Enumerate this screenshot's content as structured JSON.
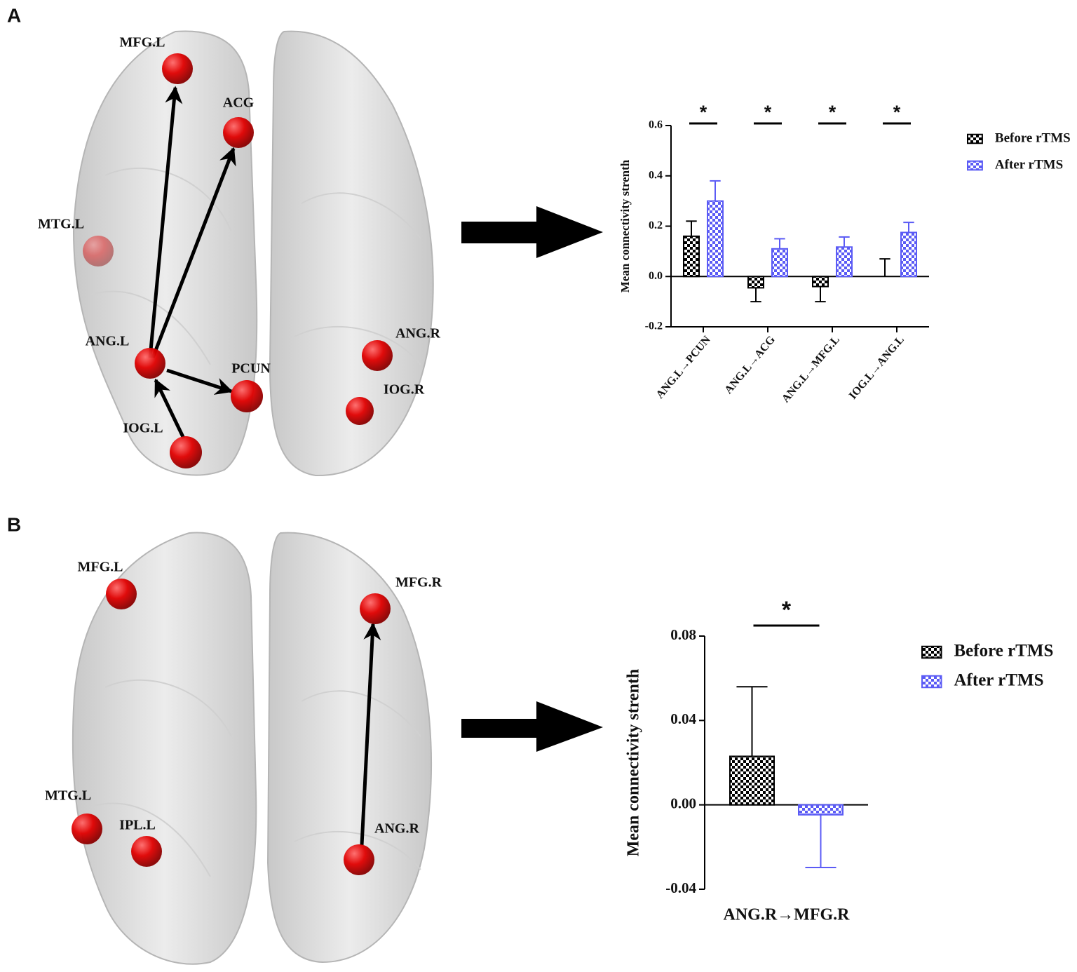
{
  "panels": [
    {
      "label": "A",
      "nodes": [
        "MFG.L",
        "ACG",
        "MTG.L",
        "ANG.L",
        "PCUN",
        "ANG.R",
        "IOG.R",
        "IOG.L"
      ]
    },
    {
      "label": "B",
      "nodes": [
        "MFG.L",
        "MFG.R",
        "MTG.L",
        "IPL.L",
        "ANG.R"
      ]
    }
  ],
  "chart_data": [
    {
      "type": "bar",
      "ylabel": "Mean connectivity strenth",
      "categories": [
        "ANG.L→PCUN",
        "ANG.L→ACG",
        "ANG.L→MFG.L",
        "IOG.L→ANG.L"
      ],
      "series": [
        {
          "name": "Before rTMS",
          "color": "#000000",
          "values": [
            0.16,
            -0.045,
            -0.04,
            0
          ],
          "errors": [
            0.06,
            0.055,
            0.06,
            0.07
          ]
        },
        {
          "name": "After rTMS",
          "color": "#5b5bf5",
          "values": [
            0.3,
            0.11,
            0.117,
            0.175
          ],
          "errors": [
            0.08,
            0.04,
            0.04,
            0.04
          ]
        }
      ],
      "ylim": [
        -0.2,
        0.6
      ],
      "yticks": [
        -0.2,
        {
          "value": 0,
          "label": "0.0"
        },
        0.2,
        0.4,
        0.6
      ],
      "annotations": [
        "*",
        "*",
        "*",
        "*"
      ]
    },
    {
      "type": "bar",
      "ylabel": "Mean connectivity strenth",
      "categories": [
        "ANG.R→MFG.R"
      ],
      "series": [
        {
          "name": "Before rTMS",
          "color": "#000000",
          "values": [
            0.023
          ],
          "errors": [
            0.033
          ]
        },
        {
          "name": "After rTMS",
          "color": "#5b5bf5",
          "values": [
            -0.0047
          ],
          "errors": [
            0.025
          ]
        }
      ],
      "ylim": [
        -0.04,
        0.08
      ],
      "yticks": [
        -0.04,
        {
          "value": 0,
          "label": "0.00"
        },
        0.04,
        0.08
      ],
      "annotations": [
        "*"
      ]
    }
  ]
}
